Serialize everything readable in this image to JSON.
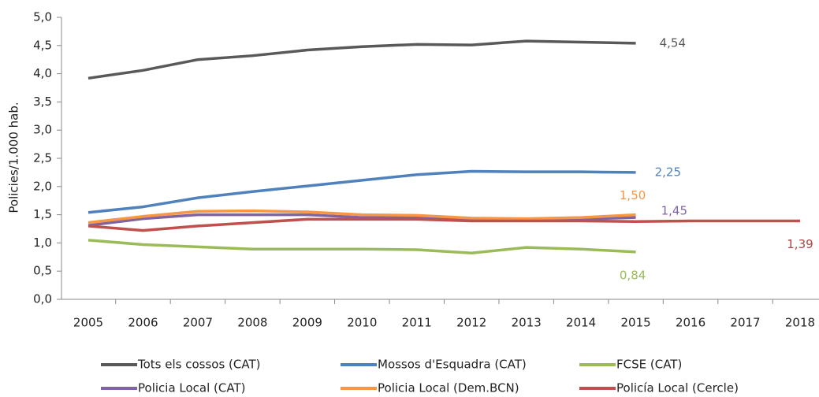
{
  "chart_data": {
    "type": "line",
    "y_axis_label": "Policies/1.000 hab.",
    "categories": [
      "2005",
      "2006",
      "2007",
      "2008",
      "2009",
      "2010",
      "2011",
      "2012",
      "2013",
      "2014",
      "2015",
      "2016",
      "2017",
      "2018"
    ],
    "ylim": [
      0,
      5
    ],
    "yticks": [
      {
        "value": 0,
        "label": "0,0"
      },
      {
        "value": 0.5,
        "label": "0,5"
      },
      {
        "value": 1,
        "label": "1,0"
      },
      {
        "value": 1.5,
        "label": "1,5"
      },
      {
        "value": 2,
        "label": "2,0"
      },
      {
        "value": 2.5,
        "label": "2,5"
      },
      {
        "value": 3,
        "label": "3,0"
      },
      {
        "value": 3.5,
        "label": "3,5"
      },
      {
        "value": 4,
        "label": "4,0"
      },
      {
        "value": 4.5,
        "label": "4,5"
      },
      {
        "value": 5,
        "label": "5,0"
      }
    ],
    "series": [
      {
        "name": "Tots els cossos (CAT)",
        "color": "#595959",
        "values": [
          3.92,
          4.06,
          4.25,
          4.32,
          4.42,
          4.48,
          4.52,
          4.51,
          4.58,
          4.56,
          4.54,
          null,
          null,
          null
        ],
        "value_labels": [
          null,
          null,
          null,
          null,
          null,
          null,
          null,
          null,
          null,
          null,
          "4,54",
          null,
          null,
          null
        ]
      },
      {
        "name": "Mossos d'Esquadra (CAT)",
        "color": "#4f81bd",
        "values": [
          1.54,
          1.64,
          1.8,
          1.91,
          2.01,
          2.11,
          2.21,
          2.27,
          2.26,
          2.26,
          2.25,
          null,
          null,
          null
        ],
        "value_labels": [
          null,
          null,
          null,
          null,
          null,
          null,
          null,
          null,
          null,
          null,
          "2,25",
          null,
          null,
          null
        ]
      },
      {
        "name": "FCSE (CAT)",
        "color": "#9bbb59",
        "values": [
          1.05,
          0.97,
          0.93,
          0.89,
          0.89,
          0.89,
          0.88,
          0.82,
          0.92,
          0.89,
          0.84,
          null,
          null,
          null
        ],
        "value_labels": [
          null,
          null,
          null,
          null,
          null,
          null,
          null,
          null,
          null,
          null,
          "0,84",
          null,
          null,
          null
        ]
      },
      {
        "name": "Policia Local (CAT)",
        "color": "#8064a2",
        "values": [
          1.31,
          1.43,
          1.5,
          1.5,
          1.5,
          1.45,
          1.45,
          1.41,
          1.41,
          1.42,
          1.45,
          null,
          null,
          null
        ],
        "value_labels": [
          null,
          null,
          null,
          null,
          null,
          null,
          null,
          null,
          null,
          null,
          "1,45",
          null,
          null,
          null
        ]
      },
      {
        "name": "Policia Local (Dem.BCN)",
        "color": "#f79646",
        "values": [
          1.36,
          1.47,
          1.56,
          1.57,
          1.55,
          1.5,
          1.49,
          1.44,
          1.43,
          1.45,
          1.5,
          null,
          null,
          null
        ],
        "value_labels": [
          null,
          null,
          null,
          null,
          null,
          null,
          null,
          null,
          null,
          null,
          "1,50",
          null,
          null,
          null
        ]
      },
      {
        "name": "Policía Local (Cercle)",
        "color": "#c0504d",
        "values": [
          1.3,
          1.22,
          1.3,
          1.36,
          1.42,
          1.42,
          1.42,
          1.39,
          1.39,
          1.39,
          1.38,
          1.39,
          1.39,
          1.39
        ],
        "value_labels": [
          null,
          null,
          null,
          null,
          null,
          null,
          null,
          null,
          null,
          null,
          null,
          null,
          null,
          "1,39"
        ]
      }
    ]
  }
}
